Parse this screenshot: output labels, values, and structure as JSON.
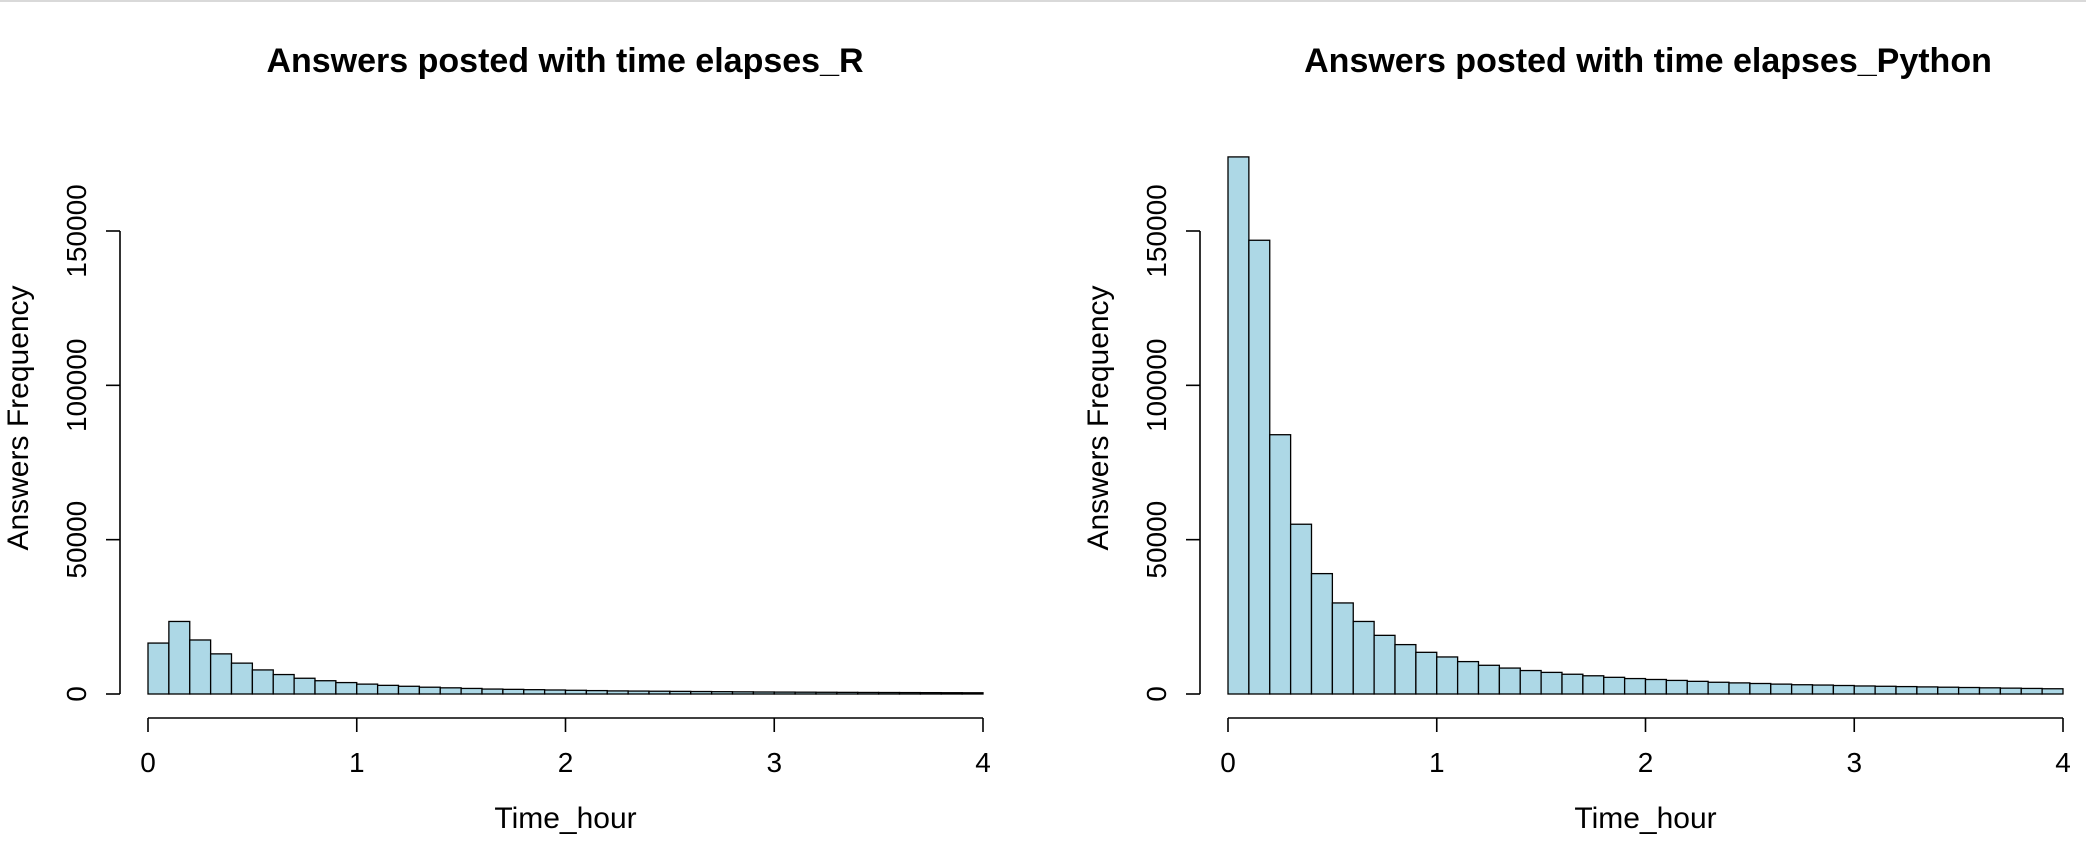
{
  "chart_data": [
    {
      "type": "bar",
      "title": "Answers posted with time elapses_R",
      "xlabel": "Time_hour",
      "ylabel": "Answers Frequency",
      "xlim": [
        0,
        4
      ],
      "ylim": [
        0,
        150000
      ],
      "x_ticks": [
        "0",
        "1",
        "2",
        "3",
        "4"
      ],
      "y_ticks": [
        "0",
        "50000",
        "100000",
        "150000"
      ],
      "bin_width": 0.1,
      "values": [
        16500,
        23500,
        17500,
        13000,
        10000,
        7800,
        6300,
        5100,
        4300,
        3700,
        3200,
        2800,
        2500,
        2200,
        2000,
        1800,
        1600,
        1500,
        1400,
        1300,
        1200,
        1100,
        1000,
        950,
        900,
        850,
        800,
        750,
        700,
        650,
        620,
        590,
        560,
        530,
        500,
        480,
        460,
        440,
        420,
        400
      ]
    },
    {
      "type": "bar",
      "title": "Answers posted with time elapses_Python",
      "xlabel": "Time_hour",
      "ylabel": "Answers Frequency",
      "xlim": [
        0,
        4
      ],
      "ylim": [
        0,
        150000
      ],
      "x_ticks": [
        "0",
        "1",
        "2",
        "3",
        "4"
      ],
      "y_ticks": [
        "0",
        "50000",
        "100000",
        "150000"
      ],
      "bin_width": 0.1,
      "values": [
        174000,
        147000,
        84000,
        55000,
        39000,
        29500,
        23500,
        19000,
        16000,
        13500,
        12000,
        10500,
        9300,
        8400,
        7600,
        7000,
        6400,
        5900,
        5400,
        5000,
        4700,
        4400,
        4100,
        3800,
        3600,
        3400,
        3200,
        3000,
        2900,
        2750,
        2600,
        2500,
        2400,
        2300,
        2200,
        2100,
        2000,
        1900,
        1800,
        1700
      ]
    }
  ]
}
